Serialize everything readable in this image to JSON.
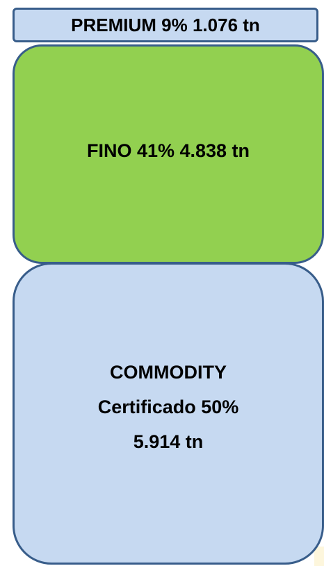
{
  "nodes": [
    {
      "lines": [
        "PREMIUM 9% 1.076 tn"
      ]
    },
    {
      "lines": [
        "FINO 41% 4.838 tn"
      ]
    },
    {
      "lines": [
        "COMMODITY",
        "Certificado 50%",
        "5.914 tn"
      ]
    }
  ]
}
